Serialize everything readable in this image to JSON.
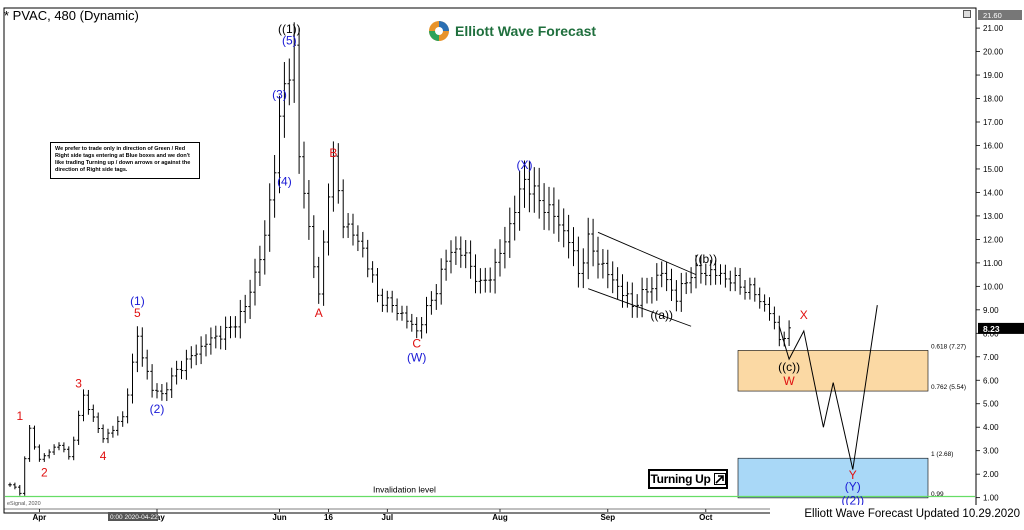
{
  "header": {
    "title": "* PVAC, 480 (Dynamic)",
    "brand": "Elliott Wave Forecast",
    "top_price": "21.60",
    "last_price": "8.23"
  },
  "note_text": "We prefer to trade only in direction of Green / Red Right side tags entering at Blue boxes and we don't like trading Turning up / down arrows or against the direction of Right side tags.",
  "badge": {
    "label": "Turning Up"
  },
  "footer": {
    "updated": "Elliott Wave Forecast Updated 10.29.2020",
    "copyright": "eSignal, 2020",
    "date_badge": "0:00 2020-04-22"
  },
  "colors": {
    "blue": "#1a1ad6",
    "red": "#e01010",
    "green_line": "#66dd66",
    "orange_box": "#fbd9a4",
    "blue_box": "#a9d8f7",
    "text_green": "#1f6f3d"
  },
  "chart_data": {
    "type": "ohlc",
    "ylim": [
      0.9,
      21.6
    ],
    "y_ticks": [
      "21.00",
      "20.00",
      "19.00",
      "18.00",
      "17.00",
      "16.00",
      "15.00",
      "14.00",
      "13.00",
      "12.00",
      "11.00",
      "10.00",
      "9.00",
      "8.00",
      "7.00",
      "6.00",
      "5.00",
      "4.00",
      "3.00",
      "2.00",
      "1.00"
    ],
    "x_ticks": [
      {
        "label": "Apr",
        "i": 6
      },
      {
        "label": "May",
        "i": 30
      },
      {
        "label": "Jun",
        "i": 55
      },
      {
        "label": "16",
        "i": 65
      },
      {
        "label": "Jul",
        "i": 77
      },
      {
        "label": "Aug",
        "i": 100
      },
      {
        "label": "Sep",
        "i": 122
      },
      {
        "label": "Oct",
        "i": 142
      }
    ],
    "n_bars": 160,
    "anchors": [
      [
        0,
        1.5
      ],
      [
        2,
        1.3
      ],
      [
        4,
        3.9
      ],
      [
        6,
        2.6
      ],
      [
        10,
        3.3
      ],
      [
        12,
        2.7
      ],
      [
        15,
        5.3
      ],
      [
        19,
        3.5
      ],
      [
        23,
        4.4
      ],
      [
        26,
        7.8
      ],
      [
        29,
        5.6
      ],
      [
        31,
        5.4
      ],
      [
        34,
        6.4
      ],
      [
        40,
        7.6
      ],
      [
        45,
        8.2
      ],
      [
        48,
        9.1
      ],
      [
        52,
        12.0
      ],
      [
        56,
        18.5
      ],
      [
        58,
        20.0
      ],
      [
        59,
        15.5
      ],
      [
        61,
        12.5
      ],
      [
        63,
        9.5
      ],
      [
        65,
        14.2
      ],
      [
        66,
        15.2
      ],
      [
        68,
        12.8
      ],
      [
        72,
        11.6
      ],
      [
        75,
        9.6
      ],
      [
        79,
        9.0
      ],
      [
        83,
        8.1
      ],
      [
        86,
        9.4
      ],
      [
        90,
        11.6
      ],
      [
        93,
        11.3
      ],
      [
        96,
        10.0
      ],
      [
        99,
        10.8
      ],
      [
        102,
        12.6
      ],
      [
        105,
        14.6
      ],
      [
        107,
        13.9
      ],
      [
        111,
        13.0
      ],
      [
        114,
        12.0
      ],
      [
        116,
        10.6
      ],
      [
        118,
        11.9
      ],
      [
        121,
        10.8
      ],
      [
        124,
        10.0
      ],
      [
        127,
        9.2
      ],
      [
        130,
        9.8
      ],
      [
        133,
        10.6
      ],
      [
        136,
        9.5
      ],
      [
        139,
        10.6
      ],
      [
        143,
        10.6
      ],
      [
        147,
        10.3
      ],
      [
        152,
        9.7
      ],
      [
        155,
        8.9
      ],
      [
        157,
        7.8
      ],
      [
        159,
        8.0
      ]
    ],
    "price_tag": 8.23,
    "zones": [
      {
        "name": "0.618 (7.27)",
        "y1": 7.27,
        "y2": 5.54,
        "fill": "#fbd9a4"
      },
      {
        "name": "1 (2.68)",
        "y1": 2.68,
        "y2": 0.99,
        "fill": "#a9d8f7"
      }
    ],
    "zone_labels": [
      {
        "label": "0.618 (7.27)",
        "y": 7.27
      },
      {
        "label": "0.762 (5.54)",
        "y": 5.54
      },
      {
        "label": "1 (2.68)",
        "y": 2.68
      },
      {
        "label": "0.99",
        "y": 0.99
      }
    ],
    "invalidation": {
      "label": "Invalidation level",
      "y": 1.05
    },
    "channel": [
      {
        "from": [
          120,
          12.3
        ],
        "to": [
          140,
          10.5
        ]
      },
      {
        "from": [
          118,
          9.9
        ],
        "to": [
          139,
          8.3
        ]
      }
    ],
    "projection": [
      [
        157,
        8.3
      ],
      [
        159,
        6.9
      ],
      [
        162,
        8.1
      ],
      [
        166,
        4.0
      ],
      [
        168,
        5.9
      ],
      [
        172,
        2.2
      ],
      [
        177,
        9.2
      ]
    ],
    "labels": [
      {
        "text": "1",
        "i": 2,
        "y": 4.3,
        "color": "red"
      },
      {
        "text": "2",
        "i": 7,
        "y": 1.9,
        "color": "red"
      },
      {
        "text": "3",
        "i": 14,
        "y": 5.7,
        "color": "red"
      },
      {
        "text": "4",
        "i": 19,
        "y": 2.6,
        "color": "red"
      },
      {
        "text": "5",
        "i": 26,
        "y": 8.7,
        "color": "red"
      },
      {
        "text": "(1)",
        "i": 26,
        "y": 9.2,
        "color": "blue"
      },
      {
        "text": "(2)",
        "i": 30,
        "y": 4.6,
        "color": "blue"
      },
      {
        "text": "(3)",
        "i": 55,
        "y": 18.0,
        "color": "blue"
      },
      {
        "text": "(4)",
        "i": 56,
        "y": 14.3,
        "color": "blue"
      },
      {
        "text": "(5)",
        "i": 57,
        "y": 20.3,
        "color": "blue"
      },
      {
        "text": "((1))",
        "i": 57,
        "y": 20.8,
        "color": "black"
      },
      {
        "text": "A",
        "i": 63,
        "y": 8.7,
        "color": "red"
      },
      {
        "text": "B",
        "i": 66,
        "y": 15.5,
        "color": "red"
      },
      {
        "text": "C",
        "i": 83,
        "y": 7.4,
        "color": "red"
      },
      {
        "text": "(W)",
        "i": 83,
        "y": 6.8,
        "color": "blue"
      },
      {
        "text": "(X)",
        "i": 105,
        "y": 15.0,
        "color": "blue"
      },
      {
        "text": "((a))",
        "i": 133,
        "y": 8.6,
        "color": "black"
      },
      {
        "text": "((b))",
        "i": 142,
        "y": 11.0,
        "color": "black"
      },
      {
        "text": "((c))",
        "i": 159,
        "y": 6.4,
        "color": "black"
      },
      {
        "text": "W",
        "i": 159,
        "y": 5.8,
        "color": "red"
      },
      {
        "text": "X",
        "i": 162,
        "y": 8.6,
        "color": "red"
      },
      {
        "text": "Y",
        "i": 172,
        "y": 1.8,
        "color": "red"
      },
      {
        "text": "(Y)",
        "i": 172,
        "y": 1.3,
        "color": "blue"
      },
      {
        "text": "((2))",
        "i": 172,
        "y": 0.7,
        "color": "blue"
      }
    ]
  }
}
